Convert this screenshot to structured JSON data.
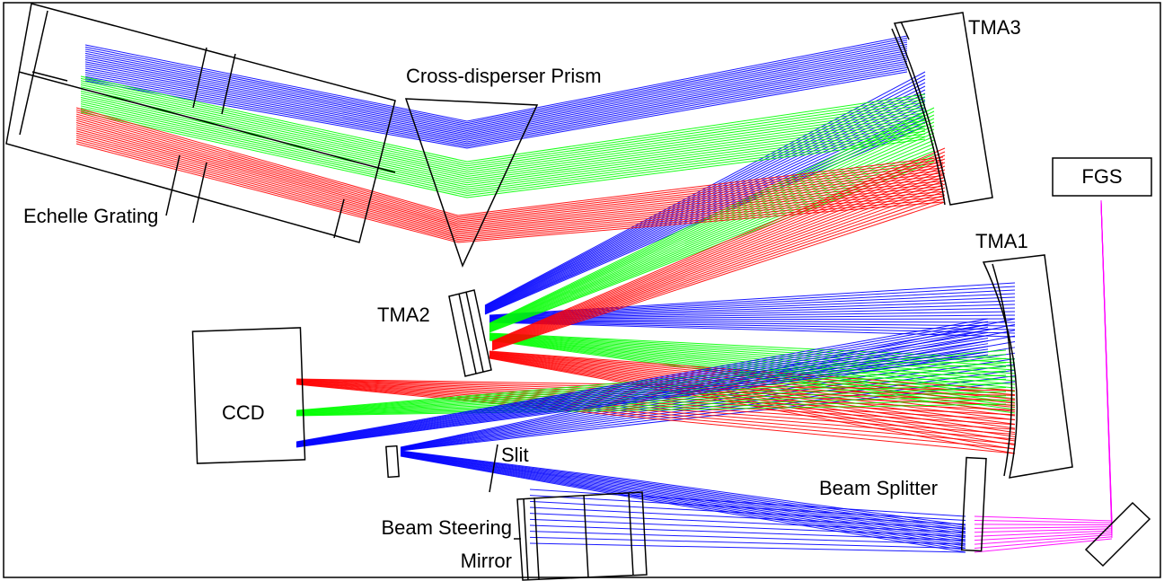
{
  "labels": {
    "echelle_grating": "Echelle Grating",
    "cross_disperser": "Cross-disperser Prism",
    "tma3": "TMA3",
    "tma1": "TMA1",
    "tma2": "TMA2",
    "fgs": "FGS",
    "ccd": "CCD",
    "slit": "Slit",
    "beam_splitter": "Beam Splitter",
    "beam_steering_line1": "Beam Steering",
    "beam_steering_line2": "Mirror"
  },
  "colors": {
    "ray_red": "#ff0000",
    "ray_green": "#00ff00",
    "ray_blue": "#0000ff",
    "ray_magenta": "#ff00ff",
    "outline": "#000000",
    "background": "#ffffff"
  }
}
